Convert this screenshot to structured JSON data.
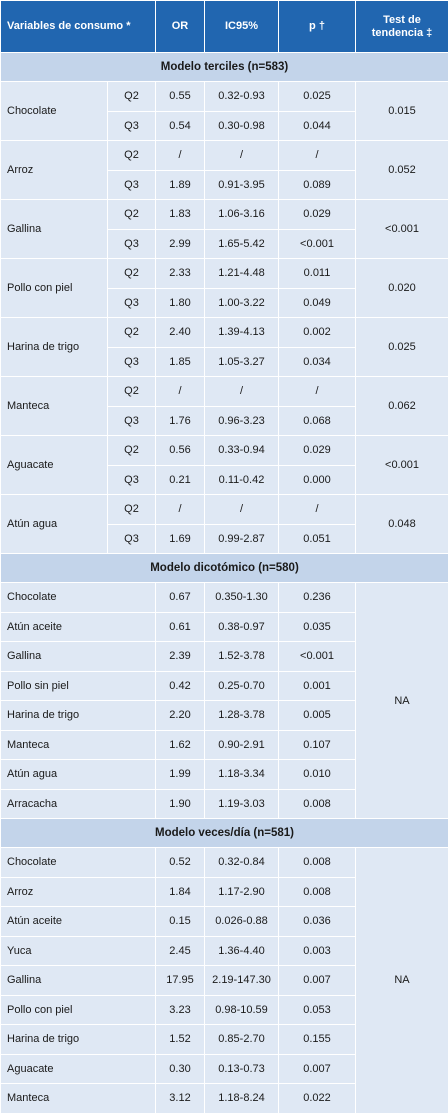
{
  "table": {
    "header": [
      "Variables de consumo *",
      "OR",
      "IC95%",
      "p †",
      "Test de tendencia ‡"
    ],
    "sections": [
      {
        "title": "Modelo terciles (n=583)",
        "groups": [
          {
            "variable": "Chocolate",
            "trend": "0.015",
            "rows": [
              [
                "Q2",
                "0.55",
                "0.32-0.93",
                "0.025"
              ],
              [
                "Q3",
                "0.54",
                "0.30-0.98",
                "0.044"
              ]
            ]
          },
          {
            "variable": "Arroz",
            "trend": "0.052",
            "rows": [
              [
                "Q2",
                "/",
                "/",
                "/"
              ],
              [
                "Q3",
                "1.89",
                "0.91-3.95",
                "0.089"
              ]
            ]
          },
          {
            "variable": "Gallina",
            "trend": "<0.001",
            "rows": [
              [
                "Q2",
                "1.83",
                "1.06-3.16",
                "0.029"
              ],
              [
                "Q3",
                "2.99",
                "1.65-5.42",
                "<0.001"
              ]
            ]
          },
          {
            "variable": "Pollo con piel",
            "trend": "0.020",
            "rows": [
              [
                "Q2",
                "2.33",
                "1.21-4.48",
                "0.011"
              ],
              [
                "Q3",
                "1.80",
                "1.00-3.22",
                "0.049"
              ]
            ]
          },
          {
            "variable": "Harina de trigo",
            "trend": "0.025",
            "rows": [
              [
                "Q2",
                "2.40",
                "1.39-4.13",
                "0.002"
              ],
              [
                "Q3",
                "1.85",
                "1.05-3.27",
                "0.034"
              ]
            ]
          },
          {
            "variable": "Manteca",
            "trend": "0.062",
            "rows": [
              [
                "Q2",
                "/",
                "/",
                "/"
              ],
              [
                "Q3",
                "1.76",
                "0.96-3.23",
                "0.068"
              ]
            ]
          },
          {
            "variable": "Aguacate",
            "trend": "<0.001",
            "rows": [
              [
                "Q2",
                "0.56",
                "0.33-0.94",
                "0.029"
              ],
              [
                "Q3",
                "0.21",
                "0.11-0.42",
                "0.000"
              ]
            ]
          },
          {
            "variable": "Atún agua",
            "trend": "0.048",
            "rows": [
              [
                "Q2",
                "/",
                "/",
                "/"
              ],
              [
                "Q3",
                "1.69",
                "0.99-2.87",
                "0.051"
              ]
            ]
          }
        ]
      },
      {
        "title": "Modelo dicotómico (n=580)",
        "trend": "NA",
        "rows": [
          [
            "Chocolate",
            "0.67",
            "0.350-1.30",
            "0.236"
          ],
          [
            "Atún aceite",
            "0.61",
            "0.38-0.97",
            "0.035"
          ],
          [
            "Gallina",
            "2.39",
            "1.52-3.78",
            "<0.001"
          ],
          [
            "Pollo sin piel",
            "0.42",
            "0.25-0.70",
            "0.001"
          ],
          [
            "Harina de trigo",
            "2.20",
            "1.28-3.78",
            "0.005"
          ],
          [
            "Manteca",
            "1.62",
            "0.90-2.91",
            "0.107"
          ],
          [
            "Atún agua",
            "1.99",
            "1.18-3.34",
            "0.010"
          ],
          [
            "Arracacha",
            "1.90",
            "1.19-3.03",
            "0.008"
          ]
        ]
      },
      {
        "title": "Modelo veces/día (n=581)",
        "trend": "NA",
        "rows": [
          [
            "Chocolate",
            "0.52",
            "0.32-0.84",
            "0.008"
          ],
          [
            "Arroz",
            "1.84",
            "1.17-2.90",
            "0.008"
          ],
          [
            "Atún aceite",
            "0.15",
            "0.026-0.88",
            "0.036"
          ],
          [
            "Yuca",
            "2.45",
            "1.36-4.40",
            "0.003"
          ],
          [
            "Gallina",
            "17.95",
            "2.19-147.30",
            "0.007"
          ],
          [
            "Pollo con piel",
            "3.23",
            "0.98-10.59",
            "0.053"
          ],
          [
            "Harina de trigo",
            "1.52",
            "0.85-2.70",
            "0.155"
          ],
          [
            "Aguacate",
            "0.30",
            "0.13-0.73",
            "0.007"
          ],
          [
            "Manteca",
            "3.12",
            "1.18-8.24",
            "0.022"
          ]
        ]
      }
    ]
  }
}
